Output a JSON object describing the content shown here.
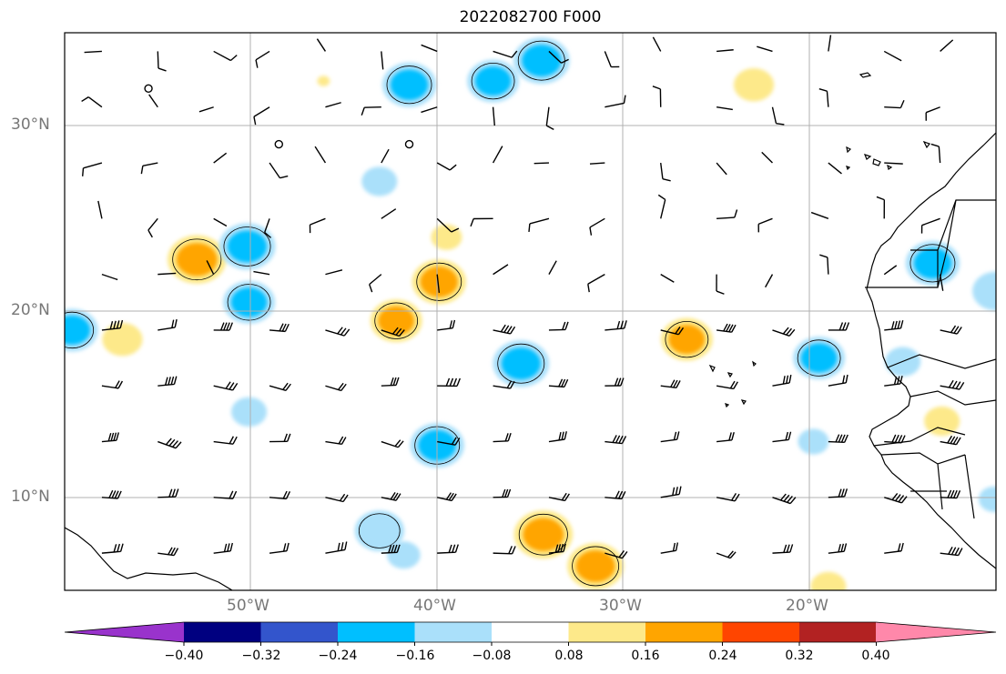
{
  "title": "2022082700 F000",
  "axes": {
    "lat_labels": [
      "30°N",
      "20°N",
      "10°N"
    ],
    "lon_labels": [
      "50°W",
      "40°W",
      "30°W",
      "20°W"
    ]
  },
  "colorbar": {
    "ticks": [
      "−0.40",
      "−0.32",
      "−0.24",
      "−0.16",
      "−0.08",
      "0.08",
      "0.16",
      "0.24",
      "0.32",
      "0.40"
    ],
    "colors": [
      "#9933cc",
      "#000080",
      "#3355cc",
      "#00bfff",
      "#aae0fa",
      "#ffffff",
      "#fde98a",
      "#ffa500",
      "#ff4500",
      "#b22222",
      "#ff88aa"
    ]
  },
  "field": {
    "lon_range": [
      -60,
      -10
    ],
    "lat_range": [
      5,
      35
    ],
    "anomaly_blobs": [
      {
        "lon": -41.5,
        "lat": 32.2,
        "value": -0.18
      },
      {
        "lon": -37,
        "lat": 32.4,
        "value": -0.17
      },
      {
        "lon": -34.4,
        "lat": 33.5,
        "value": -0.19
      },
      {
        "lon": -46.1,
        "lat": 32.4,
        "value": 0.0
      },
      {
        "lon": -52.9,
        "lat": 22.8,
        "value": 0.2
      },
      {
        "lon": -50.2,
        "lat": 23.5,
        "value": -0.19
      },
      {
        "lon": -50.1,
        "lat": 20.5,
        "value": -0.17
      },
      {
        "lon": -59.6,
        "lat": 19.0,
        "value": -0.17
      },
      {
        "lon": -56.9,
        "lat": 18.5,
        "value": 0.12
      },
      {
        "lon": -50.1,
        "lat": 14.6,
        "value": -0.1
      },
      {
        "lon": -39.9,
        "lat": 21.6,
        "value": 0.18
      },
      {
        "lon": -42.2,
        "lat": 19.5,
        "value": 0.17
      },
      {
        "lon": -39.5,
        "lat": 24.0,
        "value": 0.08
      },
      {
        "lon": -43.1,
        "lat": 27.0,
        "value": -0.1
      },
      {
        "lon": -35.5,
        "lat": 17.2,
        "value": -0.19
      },
      {
        "lon": -40,
        "lat": 12.8,
        "value": -0.18
      },
      {
        "lon": -26.6,
        "lat": 18.5,
        "value": 0.17
      },
      {
        "lon": -23.0,
        "lat": 32.2,
        "value": 0.12
      },
      {
        "lon": -19.5,
        "lat": 17.5,
        "value": -0.17
      },
      {
        "lon": -15.0,
        "lat": 17.3,
        "value": -0.1
      },
      {
        "lon": -13.4,
        "lat": 22.6,
        "value": -0.18
      },
      {
        "lon": -10.0,
        "lat": 21.1,
        "value": -0.15
      },
      {
        "lon": -19.8,
        "lat": 13.0,
        "value": -0.08
      },
      {
        "lon": -12.9,
        "lat": 14.1,
        "value": 0.1
      },
      {
        "lon": -10.1,
        "lat": 9.9,
        "value": -0.08
      },
      {
        "lon": -43.1,
        "lat": 8.2,
        "value": -0.16
      },
      {
        "lon": -41.8,
        "lat": 6.9,
        "value": -0.09
      },
      {
        "lon": -34.3,
        "lat": 8.0,
        "value": 0.2
      },
      {
        "lon": -31.5,
        "lat": 6.3,
        "value": 0.19
      },
      {
        "lon": -19.0,
        "lat": 5.2,
        "value": 0.1
      }
    ]
  }
}
